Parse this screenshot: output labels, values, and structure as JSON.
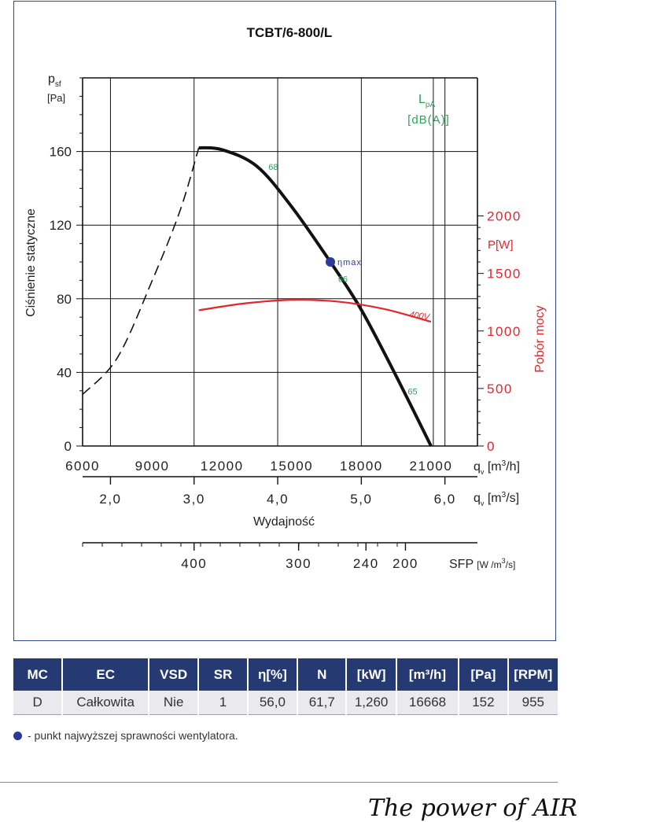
{
  "chart_data": {
    "type": "line",
    "title": "TCBT/6-800/L",
    "xlabel": "Wydajność",
    "ylabel": "Ciśnienie statyczne",
    "y_unit_symbol": "p",
    "y_unit_sub": "sf",
    "y_unit": "[Pa]",
    "ylim": [
      0,
      200
    ],
    "xlim_m3h": [
      6000,
      23000
    ],
    "y_ticks": [
      0,
      40,
      80,
      120,
      160
    ],
    "x_ticks_m3h": [
      6000,
      9000,
      12000,
      15000,
      18000,
      21000
    ],
    "x_ticks_m3h_labels": [
      "6000",
      "9000",
      "12000",
      "15000",
      "18000",
      "21000"
    ],
    "x_m3h_label": {
      "sym": "q",
      "sub": "v",
      "unit_pre": "[m",
      "unit_sup": "3",
      "unit_post": "/h]"
    },
    "x_ticks_m3s": [
      2.0,
      3.0,
      4.0,
      5.0,
      6.0
    ],
    "x_ticks_m3s_labels": [
      "2,0",
      "3,0",
      "4,0",
      "5,0",
      "6,0"
    ],
    "x_m3s_label": {
      "sym": "q",
      "sub": "v",
      "unit_pre": "[m",
      "unit_sup": "3",
      "unit_post": "/s]"
    },
    "sfp_ticks": [
      {
        "x_m3h": 10800,
        "label": "400"
      },
      {
        "x_m3h": 15300,
        "label": "300"
      },
      {
        "x_m3h": 18200,
        "label": "240"
      },
      {
        "x_m3h": 19900,
        "label": "200"
      }
    ],
    "sfp_label": {
      "pre": "SFP",
      "unit_pre": "[W /m",
      "unit_sup": "3",
      "unit_post": "/s]"
    },
    "power_axis": {
      "label": "Pobór mocy",
      "unit": "P[W]",
      "range": [
        0,
        3200
      ],
      "ticks": [
        0,
        500,
        1000,
        1500,
        2000
      ],
      "tick_labels": [
        "0",
        "500",
        "1000",
        "1500",
        "2000"
      ],
      "color": "#e3262b"
    },
    "sound_axis": {
      "symbol": "L",
      "sub": "pA",
      "unit": "[dB(A)]",
      "color": "#2aa55a"
    },
    "grid": true,
    "series": [
      {
        "name": "",
        "role": "unstable-region",
        "style": "dashed",
        "color": "#111111",
        "x": [
          6000,
          7500,
          9000,
          10200,
          11000
        ],
        "y": [
          28,
          48,
          90,
          128,
          162
        ]
      },
      {
        "name": "",
        "role": "fan-curve",
        "style": "solid",
        "color": "#111111",
        "x": [
          11000,
          12000,
          13500,
          15000,
          16668,
          18000,
          19500,
          21000
        ],
        "y": [
          162,
          161,
          152,
          130,
          100,
          74,
          38,
          0
        ]
      },
      {
        "name": "400V",
        "role": "power",
        "axis": "power",
        "style": "solid",
        "color": "#e3262b",
        "x": [
          11000,
          13000,
          15000,
          17000,
          19000,
          21000
        ],
        "y": [
          1180,
          1240,
          1270,
          1255,
          1190,
          1080
        ]
      }
    ],
    "annotations": [
      {
        "text": "68",
        "x": 14000,
        "y": 150,
        "color": "#2aa55a"
      },
      {
        "text": "66",
        "x": 17000,
        "y": 89,
        "color": "#2aa55a"
      },
      {
        "text": "65",
        "x": 20000,
        "y": 28,
        "color": "#2aa55a"
      },
      {
        "text": "ηmax",
        "x": 16668,
        "y": 100,
        "color": "#2b3a9a",
        "marker": "dot"
      }
    ]
  },
  "table": {
    "headers": [
      "MC",
      "EC",
      "VSD",
      "SR",
      "η[%]",
      "N",
      "[kW]",
      "[m³/h]",
      "[Pa]",
      "[RPM]"
    ],
    "row": [
      "D",
      "Całkowita",
      "Nie",
      "1",
      "56,0",
      "61,7",
      "1,260",
      "16668",
      "152",
      "955"
    ]
  },
  "legend_note": "- punkt najwyższej sprawności wentylatora.",
  "slogan": "The power of AIR"
}
